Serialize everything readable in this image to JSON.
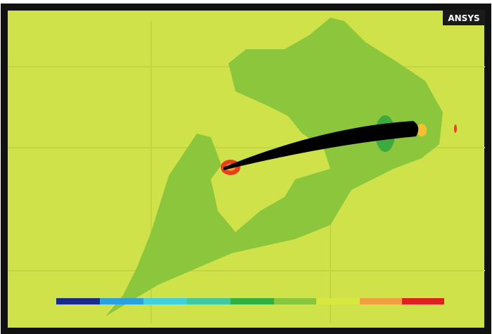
{
  "logo": "ANSYS"
}
